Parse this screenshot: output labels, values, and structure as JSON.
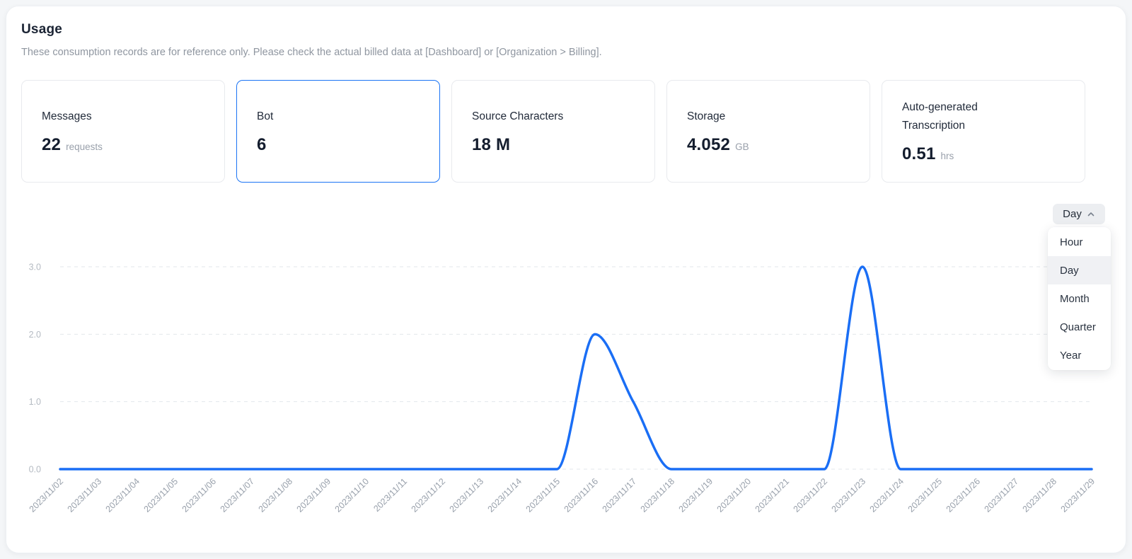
{
  "page": {
    "title": "Usage",
    "subtitle": "These consumption records are for reference only. Please check the actual billed data at [Dashboard] or [Organization > Billing]."
  },
  "cards": [
    {
      "label": "Messages",
      "value": "22",
      "unit": "requests",
      "selected": false
    },
    {
      "label": "Bot",
      "value": "6",
      "unit": "",
      "selected": true
    },
    {
      "label": "Source Characters",
      "value": "18 M",
      "unit": "",
      "selected": false
    },
    {
      "label": "Storage",
      "value": "4.052",
      "unit": "GB",
      "selected": false
    },
    {
      "label": "Auto-generated Transcription",
      "value": "0.51",
      "unit": "hrs",
      "selected": false
    }
  ],
  "granularity": {
    "selected": "Day",
    "chevron_icon": "chevron-up",
    "options": [
      "Hour",
      "Day",
      "Month",
      "Quarter",
      "Year"
    ],
    "active_option": "Day"
  },
  "chart_data": {
    "type": "line",
    "title": "",
    "xlabel": "",
    "ylabel": "",
    "x": [
      "2023/11/02",
      "2023/11/03",
      "2023/11/04",
      "2023/11/05",
      "2023/11/06",
      "2023/11/07",
      "2023/11/08",
      "2023/11/09",
      "2023/11/10",
      "2023/11/11",
      "2023/11/12",
      "2023/11/13",
      "2023/11/14",
      "2023/11/15",
      "2023/11/16",
      "2023/11/17",
      "2023/11/18",
      "2023/11/19",
      "2023/11/20",
      "2023/11/21",
      "2023/11/22",
      "2023/11/23",
      "2023/11/24",
      "2023/11/25",
      "2023/11/26",
      "2023/11/27",
      "2023/11/28",
      "2023/11/29"
    ],
    "values": [
      0,
      0,
      0,
      0,
      0,
      0,
      0,
      0,
      0,
      0,
      0,
      0,
      0,
      0,
      2,
      1,
      0,
      0,
      0,
      0,
      0,
      3,
      0,
      0,
      0,
      0,
      0,
      0
    ],
    "ylim": [
      0,
      3
    ],
    "yticks": [
      0,
      1,
      2,
      3
    ],
    "ytick_labels": [
      "0.0",
      "1.0",
      "2.0",
      "3.0"
    ],
    "smooth": true,
    "grid": "dashed-horizontal",
    "legend": "none",
    "line_color": "#1a6ef5"
  },
  "colors": {
    "accent_blue": "#1b74f5",
    "line_blue": "#1a6ef5",
    "grid_gray": "#e3e7eb",
    "ytick_gray": "#b4bac2",
    "xtick_gray": "#98a0ab",
    "text_dark": "#1b2434",
    "text_muted": "#8f96a0"
  }
}
